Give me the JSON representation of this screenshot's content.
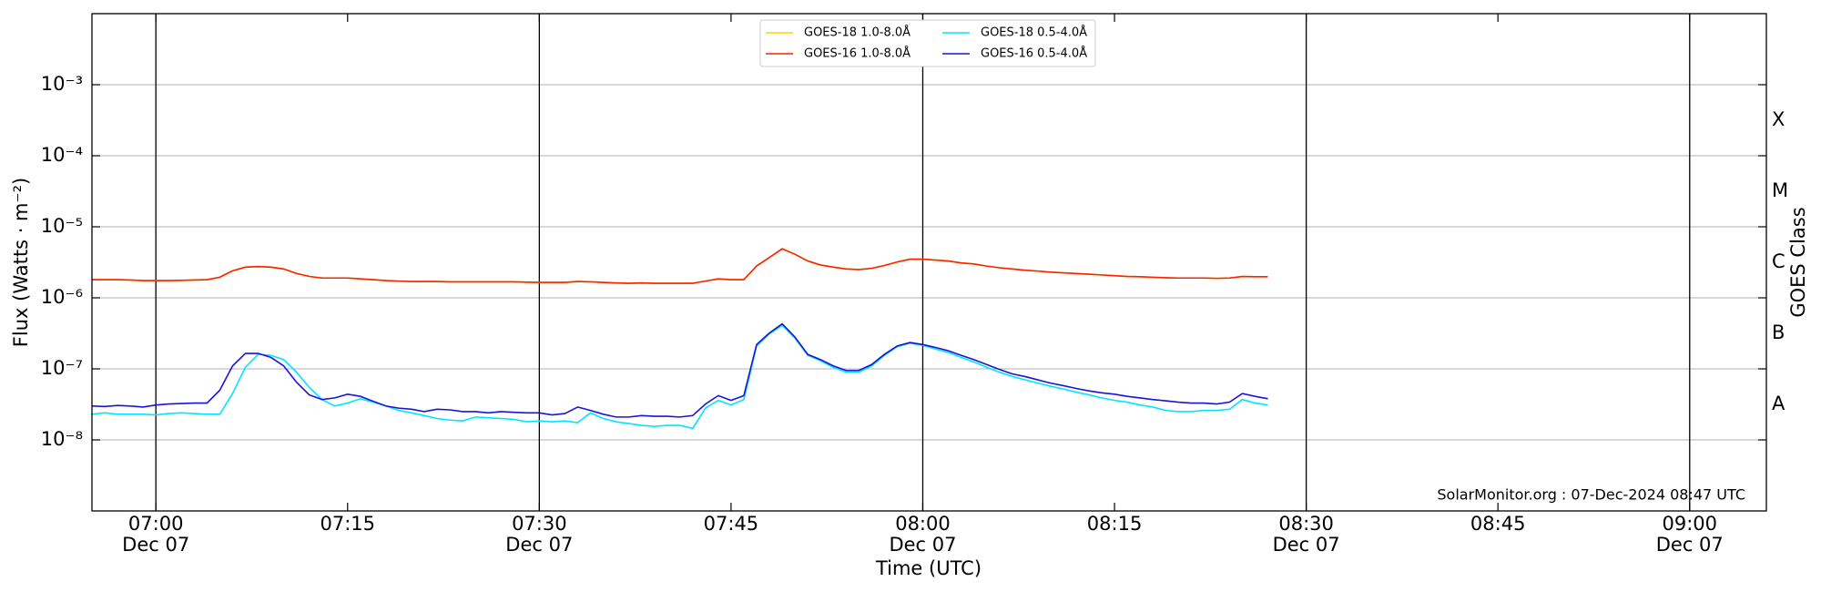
{
  "chart_data": {
    "type": "line",
    "xlabel": "Time (UTC)",
    "ylabel": "Flux (Watts · m⁻²)",
    "y2label": "GOES Class",
    "annotation": "SolarMonitor.org : 07-Dec-2024 08:47 UTC",
    "log_y": true,
    "grid": true,
    "legend": "upper center",
    "xlim": [
      "06:55",
      "09:06"
    ],
    "ylim": [
      1e-09,
      0.01
    ],
    "xticks": [
      {
        "value": "07:00",
        "label": "07:00",
        "date": "Dec 07"
      },
      "07:15",
      {
        "value": "07:30",
        "label": "07:30",
        "date": "Dec 07"
      },
      "07:45",
      {
        "value": "08:00",
        "label": "08:00",
        "date": "Dec 07"
      },
      "08:15",
      {
        "value": "08:30",
        "label": "08:30",
        "date": "Dec 07"
      },
      "08:45",
      {
        "value": "09:00",
        "label": "09:00",
        "date": "Dec 07"
      }
    ],
    "vlines": [
      "07:00",
      "07:30",
      "08:00",
      "08:30",
      "09:00"
    ],
    "yticks": [
      {
        "value": 1e-08,
        "label": "10⁻⁸"
      },
      {
        "value": 1e-07,
        "label": "10⁻⁷"
      },
      {
        "value": 1e-06,
        "label": "10⁻⁶"
      },
      {
        "value": 1e-05,
        "label": "10⁻⁵"
      },
      {
        "value": 0.0001,
        "label": "10⁻⁴"
      },
      {
        "value": 0.001,
        "label": "10⁻³"
      }
    ],
    "classes": [
      {
        "value": 1e-08,
        "label": "A"
      },
      {
        "value": 1e-07,
        "label": "B"
      },
      {
        "value": 1e-06,
        "label": "C"
      },
      {
        "value": 1e-05,
        "label": "M"
      },
      {
        "value": 0.0001,
        "label": "X"
      }
    ],
    "x": [
      "06:55",
      "06:56",
      "06:57",
      "06:58",
      "06:59",
      "07:00",
      "07:01",
      "07:02",
      "07:03",
      "07:04",
      "07:05",
      "07:06",
      "07:07",
      "07:08",
      "07:09",
      "07:10",
      "07:11",
      "07:12",
      "07:13",
      "07:14",
      "07:15",
      "07:16",
      "07:17",
      "07:18",
      "07:19",
      "07:20",
      "07:21",
      "07:22",
      "07:23",
      "07:24",
      "07:25",
      "07:26",
      "07:27",
      "07:28",
      "07:29",
      "07:30",
      "07:31",
      "07:32",
      "07:33",
      "07:34",
      "07:35",
      "07:36",
      "07:37",
      "07:38",
      "07:39",
      "07:40",
      "07:41",
      "07:42",
      "07:43",
      "07:44",
      "07:45",
      "07:46",
      "07:47",
      "07:48",
      "07:49",
      "07:50",
      "07:51",
      "07:52",
      "07:53",
      "07:54",
      "07:55",
      "07:56",
      "07:57",
      "07:58",
      "07:59",
      "08:00",
      "08:01",
      "08:02",
      "08:03",
      "08:04",
      "08:05",
      "08:06",
      "08:07",
      "08:08",
      "08:09",
      "08:10",
      "08:11",
      "08:12",
      "08:13",
      "08:14",
      "08:15",
      "08:16",
      "08:17",
      "08:18",
      "08:19",
      "08:20",
      "08:21",
      "08:22",
      "08:23",
      "08:24",
      "08:25",
      "08:26",
      "08:27"
    ],
    "series": [
      {
        "name": "GOES-18 1.0-8.0Å",
        "color": "#ffd700",
        "values": [
          1.8e-06,
          1.8e-06,
          1.8e-06,
          1.78e-06,
          1.75e-06,
          1.75e-06,
          1.75e-06,
          1.76e-06,
          1.78e-06,
          1.8e-06,
          1.95e-06,
          2.4e-06,
          2.7e-06,
          2.75e-06,
          2.7e-06,
          2.55e-06,
          2.2e-06,
          2e-06,
          1.9e-06,
          1.9e-06,
          1.9e-06,
          1.85e-06,
          1.8e-06,
          1.75e-06,
          1.72e-06,
          1.7e-06,
          1.7e-06,
          1.7e-06,
          1.68e-06,
          1.68e-06,
          1.68e-06,
          1.68e-06,
          1.68e-06,
          1.68e-06,
          1.66e-06,
          1.65e-06,
          1.65e-06,
          1.65e-06,
          1.7e-06,
          1.68e-06,
          1.65e-06,
          1.62e-06,
          1.6e-06,
          1.62e-06,
          1.6e-06,
          1.6e-06,
          1.6e-06,
          1.6e-06,
          1.72e-06,
          1.85e-06,
          1.8e-06,
          1.8e-06,
          2.8e-06,
          3.7e-06,
          4.9e-06,
          4.1e-06,
          3.3e-06,
          2.9e-06,
          2.7e-06,
          2.55e-06,
          2.5e-06,
          2.6e-06,
          2.85e-06,
          3.2e-06,
          3.5e-06,
          3.5e-06,
          3.4e-06,
          3.3e-06,
          3.1e-06,
          3e-06,
          2.8e-06,
          2.65e-06,
          2.55e-06,
          2.45e-06,
          2.38e-06,
          2.3e-06,
          2.25e-06,
          2.2e-06,
          2.15e-06,
          2.1e-06,
          2.05e-06,
          2e-06,
          1.98e-06,
          1.95e-06,
          1.92e-06,
          1.9e-06,
          1.9e-06,
          1.9e-06,
          1.88e-06,
          1.9e-06,
          2e-06,
          1.98e-06,
          1.98e-06
        ]
      },
      {
        "name": "GOES-16 1.0-8.0Å",
        "color": "#ff2000",
        "values": [
          1.8e-06,
          1.8e-06,
          1.8e-06,
          1.78e-06,
          1.75e-06,
          1.75e-06,
          1.75e-06,
          1.76e-06,
          1.78e-06,
          1.8e-06,
          1.95e-06,
          2.4e-06,
          2.7e-06,
          2.75e-06,
          2.7e-06,
          2.55e-06,
          2.2e-06,
          2e-06,
          1.9e-06,
          1.9e-06,
          1.9e-06,
          1.85e-06,
          1.8e-06,
          1.75e-06,
          1.72e-06,
          1.7e-06,
          1.7e-06,
          1.7e-06,
          1.68e-06,
          1.68e-06,
          1.68e-06,
          1.68e-06,
          1.68e-06,
          1.68e-06,
          1.66e-06,
          1.65e-06,
          1.65e-06,
          1.65e-06,
          1.7e-06,
          1.68e-06,
          1.65e-06,
          1.62e-06,
          1.6e-06,
          1.62e-06,
          1.6e-06,
          1.6e-06,
          1.6e-06,
          1.6e-06,
          1.72e-06,
          1.85e-06,
          1.8e-06,
          1.8e-06,
          2.8e-06,
          3.7e-06,
          4.9e-06,
          4.1e-06,
          3.3e-06,
          2.9e-06,
          2.7e-06,
          2.55e-06,
          2.5e-06,
          2.6e-06,
          2.85e-06,
          3.2e-06,
          3.5e-06,
          3.5e-06,
          3.4e-06,
          3.3e-06,
          3.1e-06,
          3e-06,
          2.8e-06,
          2.65e-06,
          2.55e-06,
          2.45e-06,
          2.38e-06,
          2.3e-06,
          2.25e-06,
          2.2e-06,
          2.15e-06,
          2.1e-06,
          2.05e-06,
          2e-06,
          1.98e-06,
          1.95e-06,
          1.92e-06,
          1.9e-06,
          1.9e-06,
          1.9e-06,
          1.88e-06,
          1.9e-06,
          2e-06,
          1.98e-06,
          1.98e-06
        ]
      },
      {
        "name": "GOES-18 0.5-4.0Å",
        "color": "#00e5ff",
        "values": [
          2.3e-08,
          2.4e-08,
          2.3e-08,
          2.3e-08,
          2.3e-08,
          2.25e-08,
          2.35e-08,
          2.4e-08,
          2.35e-08,
          2.3e-08,
          2.3e-08,
          4.5e-08,
          1.05e-07,
          1.6e-07,
          1.55e-07,
          1.35e-07,
          9e-08,
          5.5e-08,
          3.7e-08,
          3e-08,
          3.3e-08,
          3.8e-08,
          3.4e-08,
          3e-08,
          2.6e-08,
          2.4e-08,
          2.2e-08,
          2e-08,
          1.9e-08,
          1.85e-08,
          2.1e-08,
          2.05e-08,
          2e-08,
          1.95e-08,
          1.8e-08,
          1.85e-08,
          1.8e-08,
          1.85e-08,
          1.75e-08,
          2.4e-08,
          2e-08,
          1.8e-08,
          1.7e-08,
          1.6e-08,
          1.55e-08,
          1.6e-08,
          1.6e-08,
          1.45e-08,
          2.8e-08,
          3.6e-08,
          3.1e-08,
          3.7e-08,
          2.1e-07,
          3.1e-07,
          4.1e-07,
          2.7e-07,
          1.55e-07,
          1.3e-07,
          1.05e-07,
          9e-08,
          9e-08,
          1.1e-07,
          1.55e-07,
          2.05e-07,
          2.3e-07,
          2.15e-07,
          1.9e-07,
          1.7e-07,
          1.45e-07,
          1.25e-07,
          1.05e-07,
          9e-08,
          7.8e-08,
          7e-08,
          6.3e-08,
          5.7e-08,
          5.2e-08,
          4.7e-08,
          4.3e-08,
          3.9e-08,
          3.6e-08,
          3.4e-08,
          3.1e-08,
          2.9e-08,
          2.6e-08,
          2.5e-08,
          2.5e-08,
          2.6e-08,
          2.6e-08,
          2.7e-08,
          3.7e-08,
          3.3e-08,
          3.1e-08
        ]
      },
      {
        "name": "GOES-16 0.5-4.0Å",
        "color": "#1a14d8",
        "values": [
          3e-08,
          2.95e-08,
          3.05e-08,
          3e-08,
          2.9e-08,
          3.1e-08,
          3.2e-08,
          3.25e-08,
          3.3e-08,
          3.3e-08,
          5e-08,
          1.1e-07,
          1.65e-07,
          1.65e-07,
          1.45e-07,
          1.1e-07,
          6.5e-08,
          4.3e-08,
          3.7e-08,
          3.9e-08,
          4.4e-08,
          4.1e-08,
          3.5e-08,
          3e-08,
          2.8e-08,
          2.7e-08,
          2.5e-08,
          2.7e-08,
          2.65e-08,
          2.5e-08,
          2.5e-08,
          2.4e-08,
          2.5e-08,
          2.45e-08,
          2.4e-08,
          2.4e-08,
          2.25e-08,
          2.35e-08,
          2.9e-08,
          2.6e-08,
          2.3e-08,
          2.1e-08,
          2.1e-08,
          2.2e-08,
          2.15e-08,
          2.15e-08,
          2.1e-08,
          2.2e-08,
          3.2e-08,
          4.2e-08,
          3.6e-08,
          4.2e-08,
          2.2e-07,
          3.2e-07,
          4.3e-07,
          2.8e-07,
          1.6e-07,
          1.35e-07,
          1.1e-07,
          9.5e-08,
          9.5e-08,
          1.15e-07,
          1.6e-07,
          2.1e-07,
          2.35e-07,
          2.2e-07,
          2e-07,
          1.8e-07,
          1.55e-07,
          1.35e-07,
          1.15e-07,
          9.8e-08,
          8.5e-08,
          7.8e-08,
          7e-08,
          6.3e-08,
          5.8e-08,
          5.3e-08,
          4.9e-08,
          4.6e-08,
          4.4e-08,
          4.1e-08,
          3.9e-08,
          3.7e-08,
          3.55e-08,
          3.4e-08,
          3.3e-08,
          3.3e-08,
          3.2e-08,
          3.4e-08,
          4.5e-08,
          4.1e-08,
          3.8e-08
        ]
      }
    ]
  }
}
